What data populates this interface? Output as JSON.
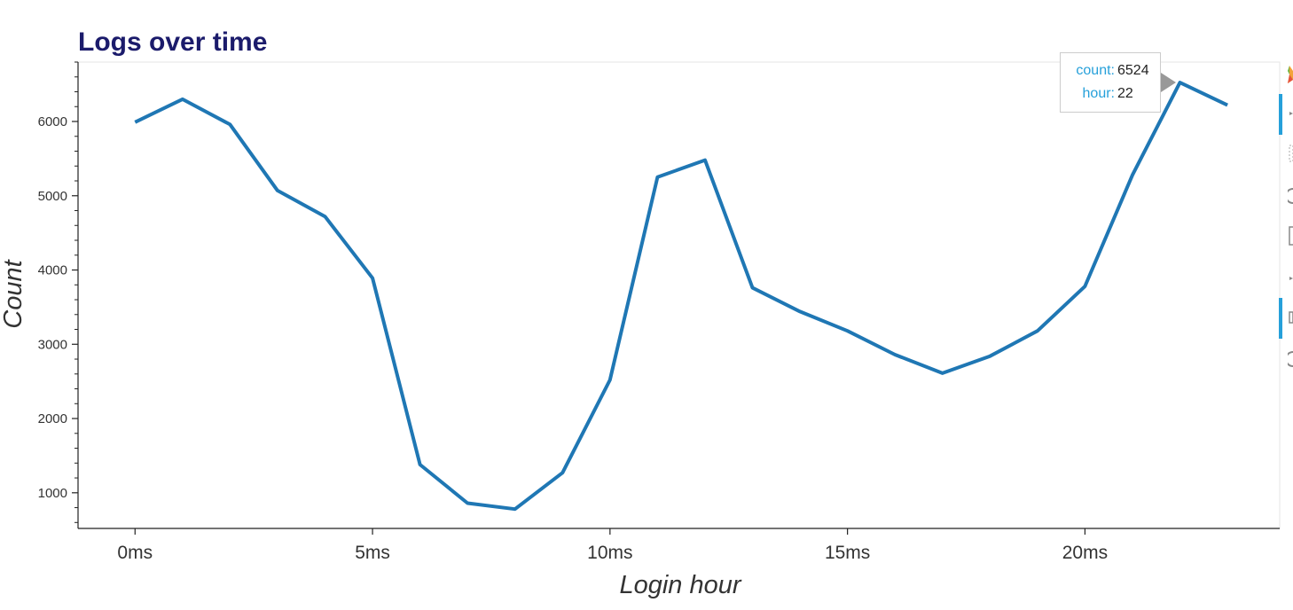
{
  "chart_data": {
    "type": "line",
    "title": "Logs over time",
    "xlabel": "Login hour",
    "ylabel": "Count",
    "x": [
      0,
      1,
      2,
      3,
      4,
      5,
      6,
      7,
      8,
      9,
      10,
      11,
      12,
      13,
      14,
      15,
      16,
      17,
      18,
      19,
      20,
      21,
      22,
      23
    ],
    "series": [
      {
        "values": [
          5990,
          6300,
          5960,
          5070,
          4720,
          3890,
          1380,
          860,
          780,
          1270,
          2520,
          5250,
          5480,
          3760,
          3440,
          3180,
          2860,
          2610,
          2840,
          3180,
          3780,
          5280,
          6524,
          6220
        ],
        "color": "#1f77b4"
      }
    ],
    "xlim": [
      -1.2,
      24.1
    ],
    "ylim": [
      520,
      6800
    ],
    "xticks": [
      0,
      5,
      10,
      15,
      20
    ],
    "xtick_labels": [
      "0ms",
      "5ms",
      "10ms",
      "15ms",
      "20ms"
    ],
    "yticks": [
      1000,
      2000,
      3000,
      4000,
      5000,
      6000
    ],
    "ytick_labels": [
      "1000",
      "2000",
      "3000",
      "4000",
      "5000",
      "6000"
    ],
    "grid": false,
    "legend": "none"
  },
  "tooltip": {
    "count_label": "count:",
    "count_value": "6524",
    "hour_label": "hour:",
    "hour_value": "22"
  },
  "toolbar": {
    "accent_color": "#26a0da",
    "icons": [
      "bokeh-logo-icon",
      "pan-icon",
      "box-zoom-icon",
      "wheel-zoom-icon",
      "save-icon",
      "reset-icon",
      "hover-icon",
      "help-icon"
    ]
  }
}
